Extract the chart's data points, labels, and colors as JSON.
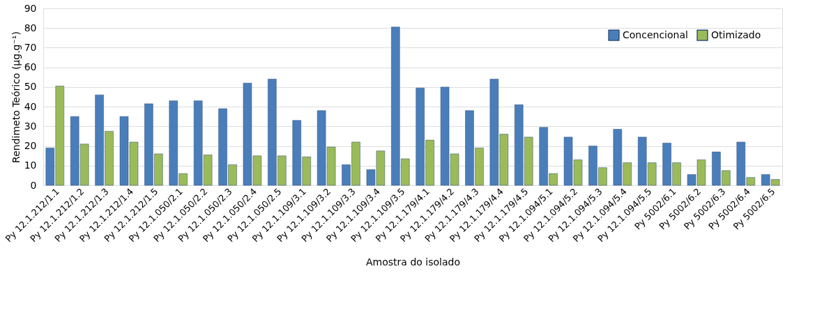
{
  "chart_data": {
    "type": "bar",
    "xlabel": "Amostra do isolado",
    "ylabel": "Rendimeto Teórico (µg.g⁻¹)",
    "categories": [
      "Py 12.1.212/1.1",
      "Py 12.1.212/1.2",
      "Py 12.1.212/1.3",
      "Py 12.1.212/1.4",
      "Py 12.1.212/1.5",
      "Py 12.1.050/2.1",
      "Py 12.1.050/2.2",
      "Py 12.1.050/2.3",
      "Py 12.1.050/2.4",
      "Py 12.1.050/2.5",
      "Py 12.1.109/3.1",
      "Py 12.1.109/3.2",
      "Py 12.1.109/3.3",
      "Py 12.1.109/3.4",
      "Py 12.1.109/3.5",
      "Py 12.1.179/4.1",
      "Py 12.1.179/4.2",
      "Py 12.1.179/4.3",
      "Py 12.1.179/4.4",
      "Py 12.1.179/4.5",
      "Py 12.1.094/5.1",
      "Py 12.1.094/5.2",
      "Py 12.1.094/5.3",
      "Py 12.1.094/5.4",
      "Py 12.1.094/5.5",
      "Py 5002/6.1",
      "Py 5002/6.2",
      "Py 5002/6.3",
      "Py 5002/6.4",
      "Py 5002/6.5"
    ],
    "series": [
      {
        "name": "Concencional",
        "color": "#4a7ebb",
        "values": [
          19,
          35,
          46,
          35,
          41.5,
          43,
          43,
          39,
          52,
          54,
          33,
          38,
          10.5,
          8,
          80.5,
          49.5,
          50,
          38,
          54,
          41,
          29.5,
          24.5,
          20,
          28.5,
          24.5,
          21.5,
          5.5,
          17,
          22,
          5.5
        ]
      },
      {
        "name": "Otimizado",
        "color": "#9bbb59",
        "values": [
          50.5,
          21,
          27.5,
          22,
          16,
          6,
          15.5,
          10.5,
          15,
          15,
          14.5,
          19.5,
          22,
          17.5,
          13.5,
          23,
          16,
          19,
          26,
          24.5,
          6,
          13,
          9,
          11.5,
          11.5,
          11.5,
          13,
          7.5,
          4,
          3
        ]
      }
    ],
    "ylim": [
      0,
      90
    ],
    "yticks": [
      0,
      10,
      20,
      30,
      40,
      50,
      60,
      70,
      80,
      90
    ],
    "grid": "y",
    "legend": "top right"
  }
}
